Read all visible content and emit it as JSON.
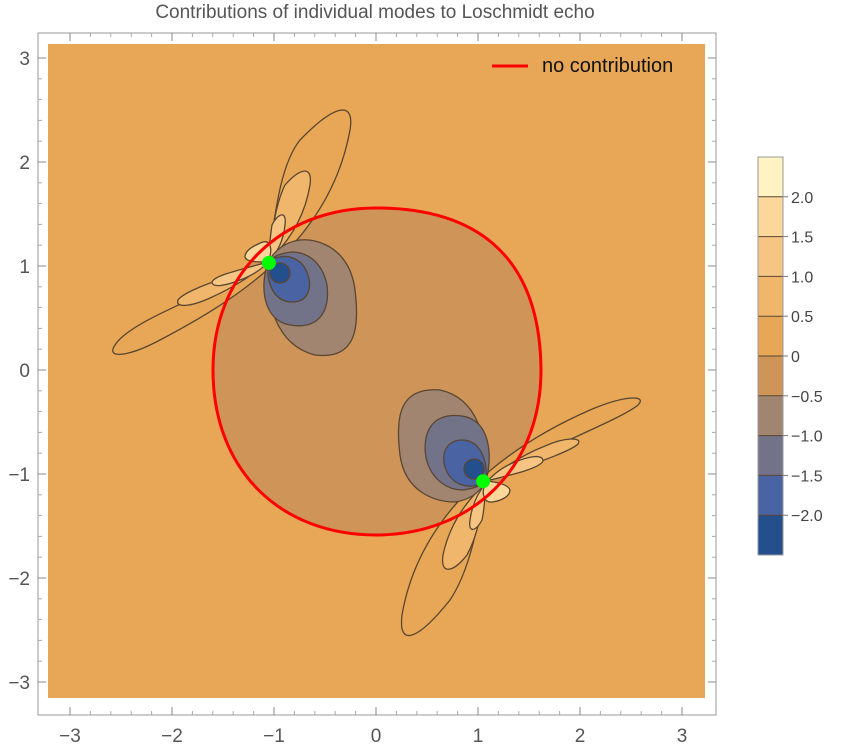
{
  "chart_data": {
    "type": "contour",
    "title": "Contributions of individual modes to Loschmidt echo",
    "xlim": [
      -3.14159,
      3.14159
    ],
    "ylim": [
      -3.14159,
      3.14159
    ],
    "xticks": [
      -3,
      -2,
      -1,
      0,
      1,
      2,
      3
    ],
    "yticks": [
      -3,
      -2,
      -1,
      0,
      1,
      2,
      3
    ],
    "xtick_labels": [
      "−3",
      "−2",
      "−1",
      "0",
      "1",
      "2",
      "3"
    ],
    "ytick_labels": [
      "−3",
      "−2",
      "−1",
      "0",
      "1",
      "2",
      "3"
    ],
    "background_color": "#e7a756",
    "legend": {
      "placement": "top-right",
      "entries": [
        {
          "label": "no contribution",
          "color": "#ff0000"
        }
      ]
    },
    "zero_contour_color": "#ff0000",
    "singular_points": [
      {
        "x": -1.05,
        "y": 1.03,
        "color": "#00ff00"
      },
      {
        "x": 1.05,
        "y": -1.07,
        "color": "#00ff00"
      }
    ],
    "colorbar": {
      "labels": [
        "2.0",
        "1.5",
        "1.0",
        "0.5",
        "0",
        "−0.5",
        "−1.0",
        "−1.5",
        "−2.0"
      ],
      "bands": [
        {
          "range": [
            2.0,
            2.5
          ],
          "color": "#fff3c4"
        },
        {
          "range": [
            1.5,
            2.0
          ],
          "color": "#fbd79a"
        },
        {
          "range": [
            1.0,
            1.5
          ],
          "color": "#f6c584"
        },
        {
          "range": [
            0.5,
            1.0
          ],
          "color": "#efb66c"
        },
        {
          "range": [
            0.0,
            0.5
          ],
          "color": "#e7a756"
        },
        {
          "range": [
            -0.5,
            0.0
          ],
          "color": "#cf9457"
        },
        {
          "range": [
            -1.0,
            -0.5
          ],
          "color": "#a18570"
        },
        {
          "range": [
            -1.5,
            -1.0
          ],
          "color": "#727289"
        },
        {
          "range": [
            -2.0,
            -1.5
          ],
          "color": "#4a63a3"
        },
        {
          "range": [
            -2.5,
            -2.0
          ],
          "color": "#234f8c"
        }
      ]
    }
  }
}
